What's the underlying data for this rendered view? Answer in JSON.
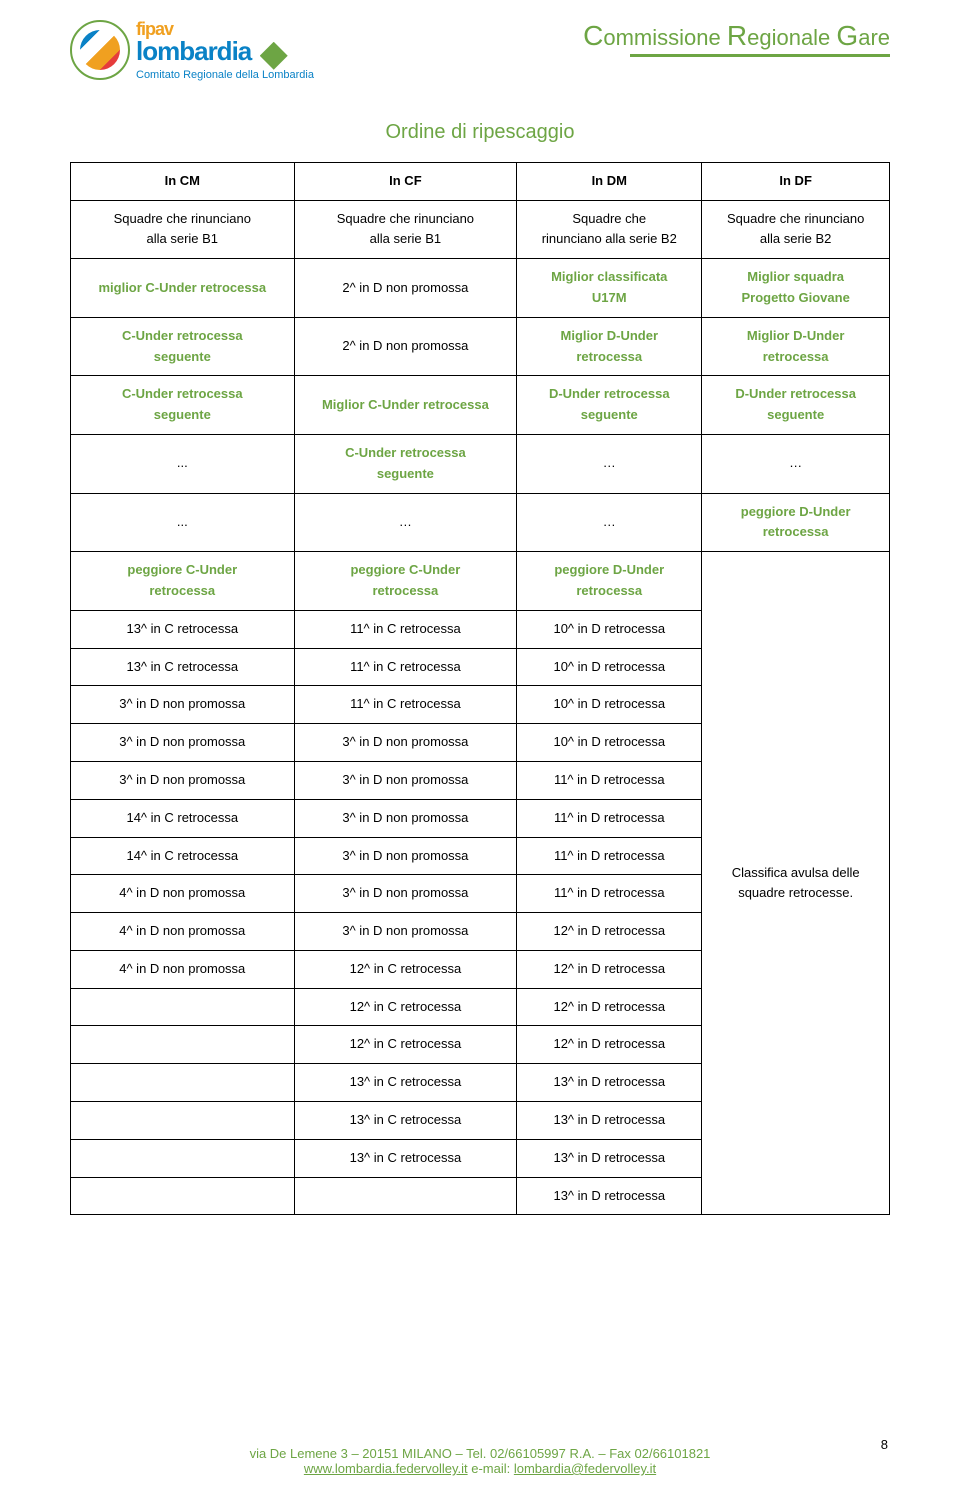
{
  "header": {
    "logo_fipav": "fipav",
    "logo_lombardia": "lombardia",
    "logo_sub": "Comitato Regionale della Lombardia",
    "crg_c": "C",
    "crg_ommissione": "ommissione",
    "crg_r": "R",
    "crg_egionale": "egionale",
    "crg_g": "G",
    "crg_are": "are"
  },
  "table": {
    "title": "Ordine di ripescaggio",
    "colors": {
      "green": "#6da544",
      "black": "#000000",
      "border": "#000000"
    },
    "header_row": {
      "c1": "In CM",
      "c2": "In CF",
      "c3": "In DM",
      "c4": "In DF"
    },
    "row1": {
      "c1_l1": "Squadre che rinunciano",
      "c1_l2": "alla serie B1",
      "c2_l1": "Squadre che rinunciano",
      "c2_l2": "alla serie B1",
      "c3_l1": "Squadre che",
      "c3_l2": "rinunciano alla serie B2",
      "c4_l1": "Squadre che rinunciano",
      "c4_l2": "alla serie B2"
    },
    "row2": {
      "c1": "miglior C-Under retrocessa",
      "c2": "2^ in D non promossa",
      "c3_l1": "Miglior classificata",
      "c3_l2": "U17M",
      "c4_l1": "Miglior squadra",
      "c4_l2": "Progetto Giovane"
    },
    "row3": {
      "c1_l1": "C-Under retrocessa",
      "c1_l2": "seguente",
      "c2": "2^ in D non promossa",
      "c3_l1": "Miglior D-Under",
      "c3_l2": "retrocessa",
      "c4_l1": "Miglior D-Under",
      "c4_l2": "retrocessa"
    },
    "row4": {
      "c1_l1": "C-Under retrocessa",
      "c1_l2": "seguente",
      "c2": "Miglior C-Under retrocessa",
      "c3_l1": "D-Under retrocessa",
      "c3_l2": "seguente",
      "c4_l1": "D-Under retrocessa",
      "c4_l2": "seguente"
    },
    "row5": {
      "c1": "...",
      "c2_l1": "C-Under retrocessa",
      "c2_l2": "seguente",
      "c3": "…",
      "c4": "…"
    },
    "row6": {
      "c1": "...",
      "c2": "…",
      "c3": "…",
      "c4_l1": "peggiore D-Under",
      "c4_l2": "retrocessa"
    },
    "row7": {
      "c1_l1": "peggiore C-Under",
      "c1_l2": "retrocessa",
      "c2_l1": "peggiore C-Under",
      "c2_l2": "retrocessa",
      "c3_l1": "peggiore D-Under",
      "c3_l2": "retrocessa"
    },
    "data_rows": [
      [
        "13^ in C retrocessa",
        "11^ in C retrocessa",
        "10^ in D retrocessa"
      ],
      [
        "13^ in C retrocessa",
        "11^ in C retrocessa",
        "10^ in D retrocessa"
      ],
      [
        "3^ in D non promossa",
        "11^ in C retrocessa",
        "10^ in D retrocessa"
      ],
      [
        "3^ in D non promossa",
        "3^ in D non promossa",
        "10^ in D retrocessa"
      ],
      [
        "3^ in D non promossa",
        "3^ in D non promossa",
        "11^ in D retrocessa"
      ],
      [
        "14^ in C retrocessa",
        "3^ in D non promossa",
        "11^ in D retrocessa"
      ],
      [
        "14^ in C retrocessa",
        "3^ in D non promossa",
        "11^ in D retrocessa"
      ],
      [
        "4^ in D non promossa",
        "3^ in D non promossa",
        "11^ in D retrocessa"
      ],
      [
        "4^ in D non promossa",
        "3^ in D non promossa",
        "12^ in D retrocessa"
      ],
      [
        "4^ in D non promossa",
        "12^ in C retrocessa",
        "12^ in D retrocessa"
      ],
      [
        "",
        "12^ in C retrocessa",
        "12^ in D retrocessa"
      ],
      [
        "",
        "12^ in C retrocessa",
        "12^ in D retrocessa"
      ],
      [
        "",
        "13^ in C retrocessa",
        "13^ in D retrocessa"
      ],
      [
        "",
        "13^ in C retrocessa",
        "13^ in D retrocessa"
      ],
      [
        "",
        "13^ in C retrocessa",
        "13^ in D retrocessa"
      ],
      [
        "",
        "",
        "13^ in D retrocessa"
      ]
    ],
    "merged_text_l1": "Classifica avulsa delle",
    "merged_text_l2": "squadre retrocesse."
  },
  "footer": {
    "line1": "via De Lemene 3 – 20151 MILANO – Tel. 02/66105997 R.A. – Fax 02/66101821",
    "line2_a": "www.lombardia.federvolley.it",
    "line2_mid": "   e-mail: ",
    "line2_b": "lombardia@federvolley.it"
  },
  "page_number": "8"
}
